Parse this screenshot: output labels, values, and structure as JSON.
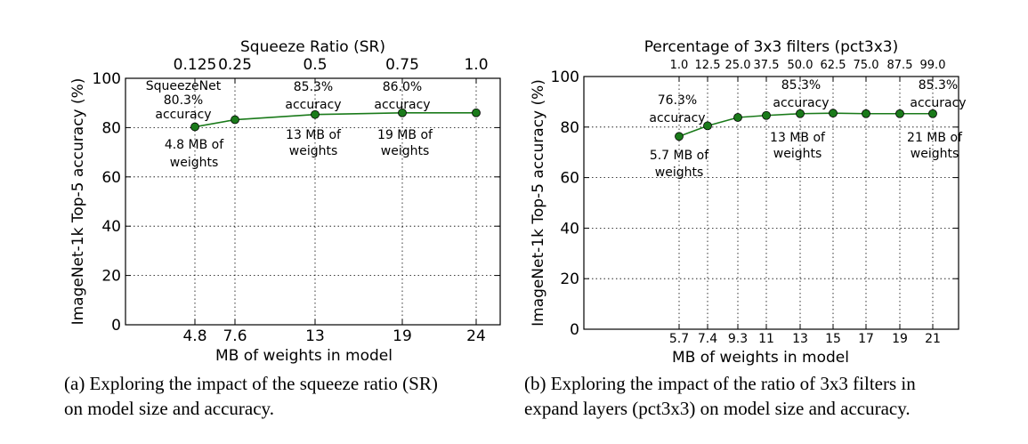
{
  "chart_data": [
    {
      "type": "line",
      "title": "Squeeze Ratio (SR)",
      "xlabel": "MB of weights in model",
      "ylabel": "ImageNet-1k Top-5 accuracy (%)",
      "ylim": [
        0,
        100
      ],
      "yticks": [
        "0",
        "20",
        "40",
        "60",
        "80",
        "100"
      ],
      "xticks": [
        "4.8",
        "7.6",
        "13",
        "19",
        "24"
      ],
      "top_ticks": [
        "0.125",
        "0.25",
        "0.5",
        "0.75",
        "1.0"
      ],
      "grid": true,
      "color": "#1a7a1a",
      "points": [
        {
          "x": 4.8,
          "sr": 0.125,
          "y": 80.3
        },
        {
          "x": 7.6,
          "sr": 0.25,
          "y": 83.2
        },
        {
          "x": 13,
          "sr": 0.5,
          "y": 85.3
        },
        {
          "x": 19,
          "sr": 0.75,
          "y": 86.0
        },
        {
          "x": 24,
          "sr": 1.0,
          "y": 86.0
        }
      ],
      "annotations": [
        {
          "lines": [
            "SqueezeNet",
            "80.3%",
            "accuracy"
          ]
        },
        {
          "lines": [
            "4.8 MB of",
            "weights"
          ]
        },
        {
          "lines": [
            "85.3%",
            "accuracy"
          ]
        },
        {
          "lines": [
            "13 MB of",
            "weights"
          ]
        },
        {
          "lines": [
            "86.0%",
            "accuracy"
          ]
        },
        {
          "lines": [
            "19 MB of",
            "weights"
          ]
        }
      ],
      "caption": [
        "(a) Exploring the impact of the squeeze ratio (SR)",
        "on model size and accuracy."
      ]
    },
    {
      "type": "line",
      "title": "Percentage of 3x3 filters (pct3x3)",
      "xlabel": "MB of weights in model",
      "ylabel": "ImageNet-1k Top-5 accuracy (%)",
      "ylim": [
        0,
        100
      ],
      "yticks": [
        "0",
        "20",
        "40",
        "60",
        "80",
        "100"
      ],
      "xticks": [
        "5.7",
        "7.4",
        "9.3",
        "11",
        "13",
        "15",
        "17",
        "19",
        "21"
      ],
      "top_ticks": [
        "1.0",
        "12.5",
        "25.0",
        "37.5",
        "50.0",
        "62.5",
        "75.0",
        "87.5",
        "99.0"
      ],
      "grid": true,
      "color": "#1a7a1a",
      "points": [
        {
          "x": 5.7,
          "pct": 1.0,
          "y": 76.3
        },
        {
          "x": 7.4,
          "pct": 12.5,
          "y": 80.5
        },
        {
          "x": 9.3,
          "pct": 25.0,
          "y": 83.8
        },
        {
          "x": 11,
          "pct": 37.5,
          "y": 84.6
        },
        {
          "x": 13,
          "pct": 50.0,
          "y": 85.3
        },
        {
          "x": 15,
          "pct": 62.5,
          "y": 85.5
        },
        {
          "x": 17,
          "pct": 75.0,
          "y": 85.3
        },
        {
          "x": 19,
          "pct": 87.5,
          "y": 85.3
        },
        {
          "x": 21,
          "pct": 99.0,
          "y": 85.3
        }
      ],
      "annotations": [
        {
          "lines": [
            "76.3%",
            "accuracy"
          ]
        },
        {
          "lines": [
            "5.7 MB of",
            "weights"
          ]
        },
        {
          "lines": [
            "85.3%",
            "accuracy"
          ]
        },
        {
          "lines": [
            "13 MB of",
            "weights"
          ]
        },
        {
          "lines": [
            "85.3%",
            "accuracy"
          ]
        },
        {
          "lines": [
            "21 MB of",
            "weights"
          ]
        }
      ],
      "caption": [
        "(b) Exploring the impact of the ratio of 3x3 filters in",
        "expand layers (pct3x3) on model size and accuracy."
      ]
    }
  ]
}
